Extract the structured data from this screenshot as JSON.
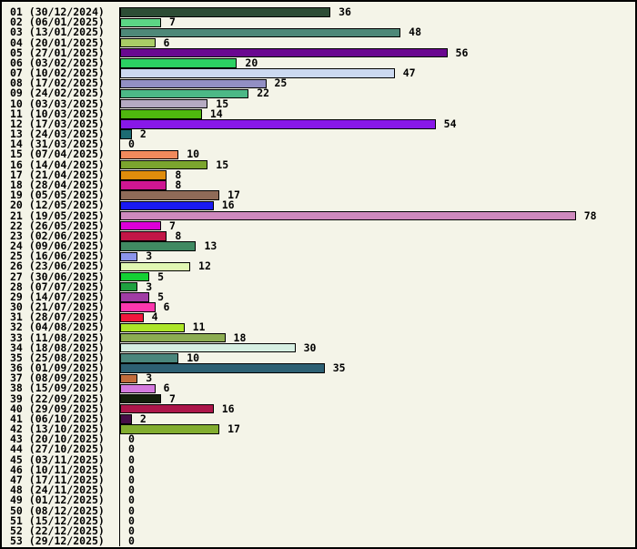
{
  "chart_data": {
    "type": "bar",
    "orientation": "horizontal",
    "title": "",
    "xlabel": "",
    "ylabel": "",
    "xlim": [
      0,
      88
    ],
    "grid": false,
    "legend": "none",
    "value_labels_shown": true,
    "categories": [
      "01 (30/12/2024)",
      "02 (06/01/2025)",
      "03 (13/01/2025)",
      "04 (20/01/2025)",
      "05 (27/01/2025)",
      "06 (03/02/2025)",
      "07 (10/02/2025)",
      "08 (17/02/2025)",
      "09 (24/02/2025)",
      "10 (03/03/2025)",
      "11 (10/03/2025)",
      "12 (17/03/2025)",
      "13 (24/03/2025)",
      "14 (31/03/2025)",
      "15 (07/04/2025)",
      "16 (14/04/2025)",
      "17 (21/04/2025)",
      "18 (28/04/2025)",
      "19 (05/05/2025)",
      "20 (12/05/2025)",
      "21 (19/05/2025)",
      "22 (26/05/2025)",
      "23 (02/06/2025)",
      "24 (09/06/2025)",
      "25 (16/06/2025)",
      "26 (23/06/2025)",
      "27 (30/06/2025)",
      "28 (07/07/2025)",
      "29 (14/07/2025)",
      "30 (21/07/2025)",
      "31 (28/07/2025)",
      "32 (04/08/2025)",
      "33 (11/08/2025)",
      "34 (18/08/2025)",
      "35 (25/08/2025)",
      "36 (01/09/2025)",
      "37 (08/09/2025)",
      "38 (15/09/2025)",
      "39 (22/09/2025)",
      "40 (29/09/2025)",
      "41 (06/10/2025)",
      "42 (13/10/2025)",
      "43 (20/10/2025)",
      "44 (27/10/2025)",
      "45 (03/11/2025)",
      "46 (10/11/2025)",
      "47 (17/11/2025)",
      "48 (24/11/2025)",
      "49 (01/12/2025)",
      "50 (08/12/2025)",
      "51 (15/12/2025)",
      "52 (22/12/2025)",
      "53 (29/12/2025)"
    ],
    "values": [
      36,
      7,
      48,
      6,
      56,
      20,
      47,
      25,
      22,
      15,
      14,
      54,
      2,
      0,
      10,
      15,
      8,
      8,
      17,
      16,
      78,
      7,
      8,
      13,
      3,
      12,
      5,
      3,
      5,
      6,
      4,
      11,
      18,
      30,
      10,
      35,
      3,
      6,
      7,
      16,
      2,
      17,
      0,
      0,
      0,
      0,
      0,
      0,
      0,
      0,
      0,
      0,
      0
    ],
    "bar_colors": [
      "#2d4d35",
      "#5cd685",
      "#4e8878",
      "#a9cd66",
      "#6a0890",
      "#2bd163",
      "#ccd9f0",
      "#928fc4",
      "#4cb886",
      "#b5aac2",
      "#4fb80e",
      "#8818e8",
      "#1c6b73",
      null,
      "#f08a5c",
      "#7ba52e",
      "#e08d0c",
      "#ce1692",
      "#8f6b58",
      "#1a1af2",
      "#cf8abe",
      "#dd00d8",
      "#c21747",
      "#408a62",
      "#8c95ea",
      "#e0f7b2",
      "#14d034",
      "#1fa040",
      "#a03da4",
      "#fc37ad",
      "#f2163c",
      "#ace528",
      "#8cad52",
      "#d6efe2",
      "#4a867c",
      "#2d6073",
      "#c26c3c",
      "#d47ade",
      "#121e0a",
      "#ac164a",
      "#460d48",
      "#82ad30",
      null,
      null,
      null,
      null,
      null,
      null,
      null,
      null,
      null,
      null,
      null
    ],
    "colors": {
      "background": "#f4f4e8",
      "border": "#000000",
      "axis": "#000000",
      "text": "#000000"
    }
  }
}
